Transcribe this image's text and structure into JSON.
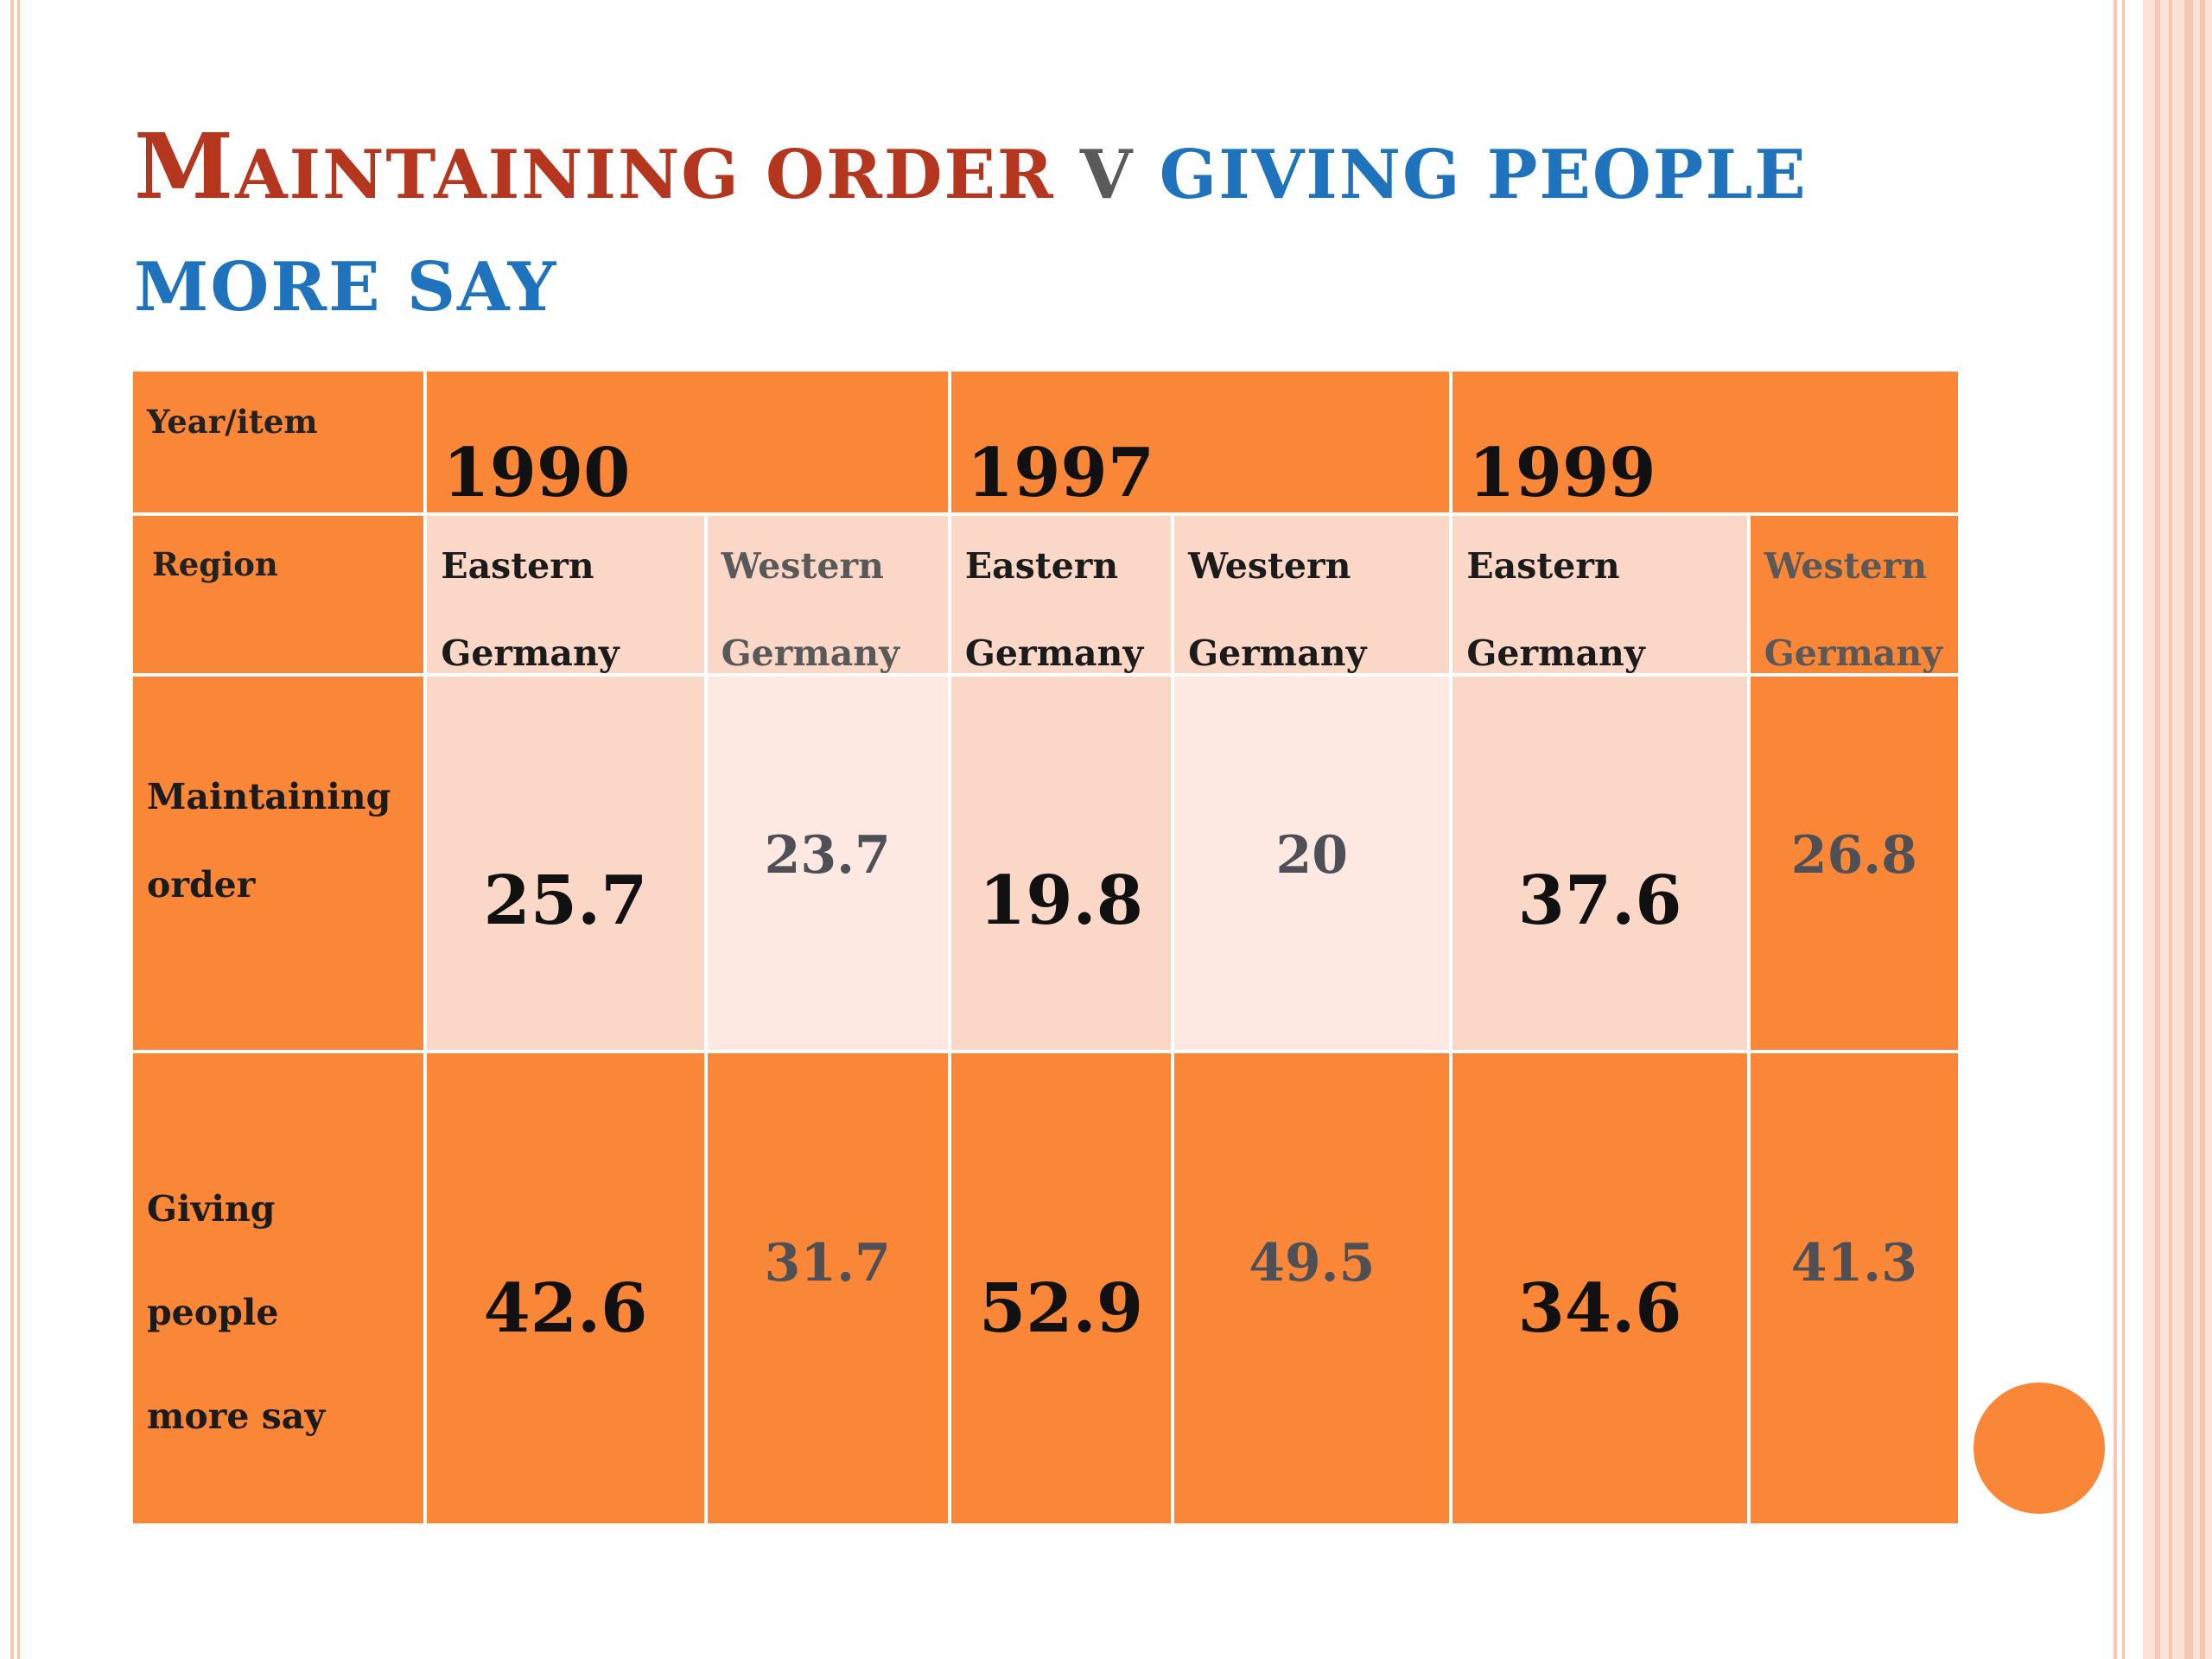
{
  "title": {
    "part1_initial": "M",
    "part1_rest": "AINTAINING ORDER",
    "connector": "V",
    "part2": "GIVING PEOPLE MORE SAY"
  },
  "table": {
    "corner_label": "Year/item",
    "years": [
      "1990",
      "1997",
      "1999"
    ],
    "region_label": "Region",
    "regions": [
      "Eastern\nGermany",
      "Western\nGermany",
      "Eastern\nGermany",
      "Western\nGermany",
      "Eastern\nGermany",
      "Western\nGermany"
    ],
    "rows": [
      {
        "label": "Maintaining\norder",
        "values": [
          "25.7",
          "23.7",
          "19.8",
          "20",
          "37.6",
          "26.8"
        ]
      },
      {
        "label": "Giving\npeople\nmore say",
        "values": [
          "42.6",
          "31.7",
          "52.9",
          "49.5",
          "34.6",
          "41.3"
        ]
      }
    ]
  },
  "colors": {
    "orange": "#fa8638",
    "light_peach": "#fbd7c8",
    "pale_peach": "#fde9e2",
    "title_red": "#b5361e",
    "title_blue": "#1f73bc"
  }
}
